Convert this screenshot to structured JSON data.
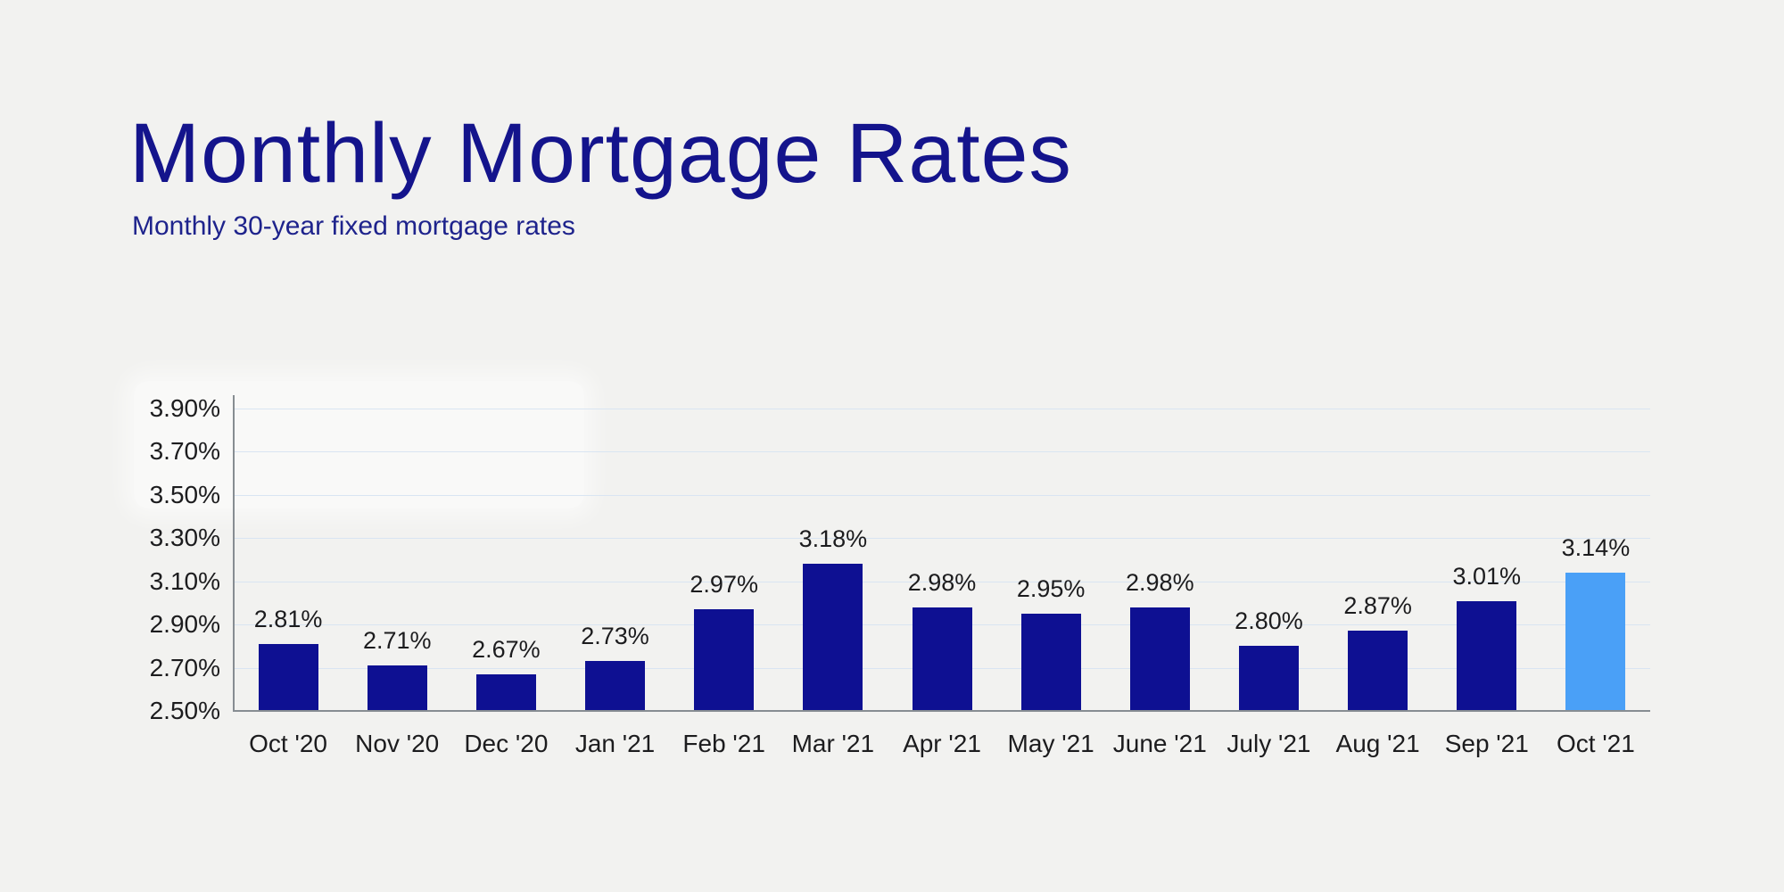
{
  "page": {
    "title": "Monthly Mortgage Rates",
    "subtitle": "Monthly 30-year fixed mortgage rates"
  },
  "colors": {
    "background": "#f2f2f0",
    "title_text": "#14148c",
    "subtitle_text": "#1e238c",
    "bar_default": "#0e1092",
    "bar_highlight": "#4aa0f7",
    "gridline": "#d9e5f2",
    "axis_line": "#878d92",
    "label_text": "#1c1c1e"
  },
  "chart_data": {
    "type": "bar",
    "title": "Monthly Mortgage Rates",
    "subtitle": "Monthly 30-year fixed mortgage rates",
    "categories": [
      "Oct '20",
      "Nov '20",
      "Dec '20",
      "Jan '21",
      "Feb '21",
      "Mar '21",
      "Apr '21",
      "May '21",
      "June '21",
      "July '21",
      "Aug '21",
      "Sep '21",
      "Oct '21"
    ],
    "values": [
      2.81,
      2.71,
      2.67,
      2.73,
      2.97,
      3.18,
      2.98,
      2.95,
      2.98,
      2.8,
      2.87,
      3.01,
      3.14
    ],
    "value_label_format": "percent_two_decimals",
    "highlighted_index": 12,
    "highlight_meaning": "most recent month",
    "y_ticks": [
      {
        "label": "3.90%",
        "value": 3.9
      },
      {
        "label": "3.70%",
        "value": 3.7
      },
      {
        "label": "3.50%",
        "value": 3.5
      },
      {
        "label": "3.30%",
        "value": 3.3
      },
      {
        "label": "3.10%",
        "value": 3.1
      },
      {
        "label": "2.90%",
        "value": 2.9
      },
      {
        "label": "2.70%",
        "value": 2.7
      },
      {
        "label": "2.50%",
        "value": 2.5
      }
    ],
    "ylim": [
      2.5,
      3.9
    ],
    "xlabel": "",
    "ylabel": "",
    "grid": "horizontal",
    "legend": "none",
    "data_labels": "above_bars"
  }
}
